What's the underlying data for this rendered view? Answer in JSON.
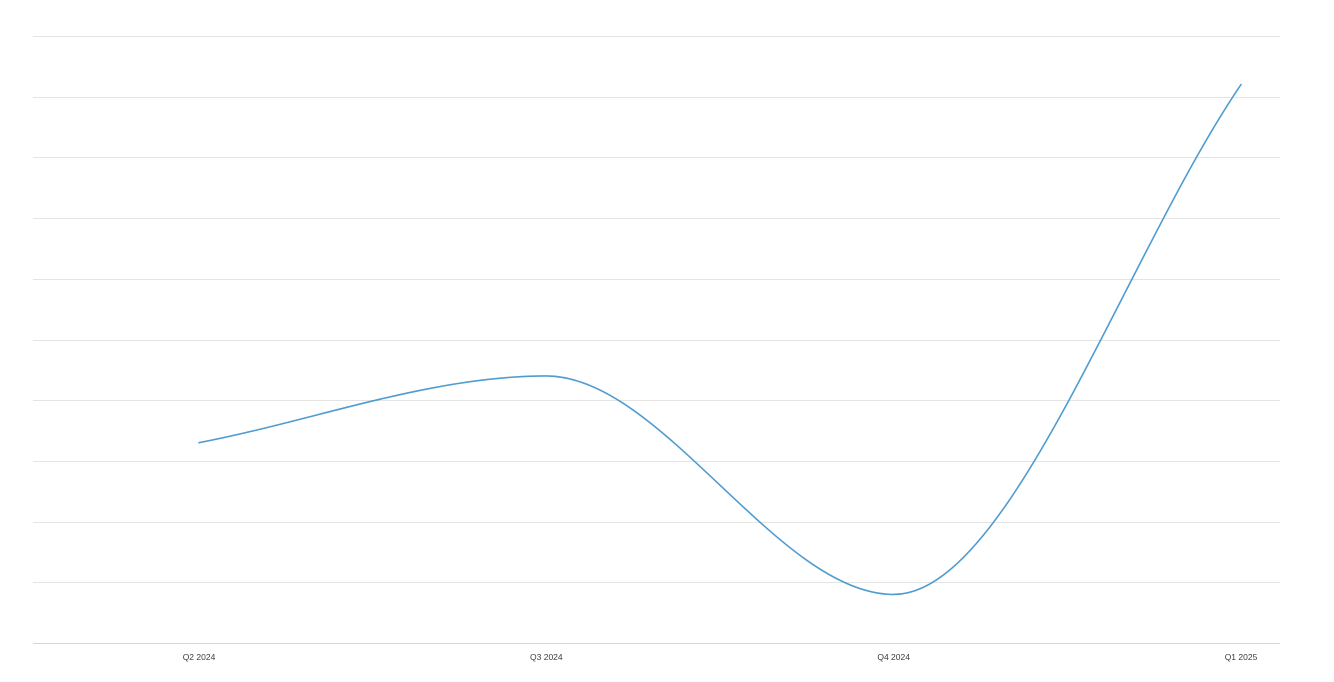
{
  "chart_data": {
    "type": "line",
    "categories": [
      "Q2 2024",
      "Q3 2024",
      "Q4 2024",
      "Q1 2025"
    ],
    "series": [
      {
        "values": [
          33,
          44,
          8,
          92
        ],
        "color": "#4f9cd1"
      }
    ],
    "ylim": [
      0,
      100
    ],
    "y_gridlines": 10,
    "grid": true,
    "curve": "smooth",
    "legend": "none",
    "title": "",
    "xlabel": "",
    "ylabel": ""
  }
}
